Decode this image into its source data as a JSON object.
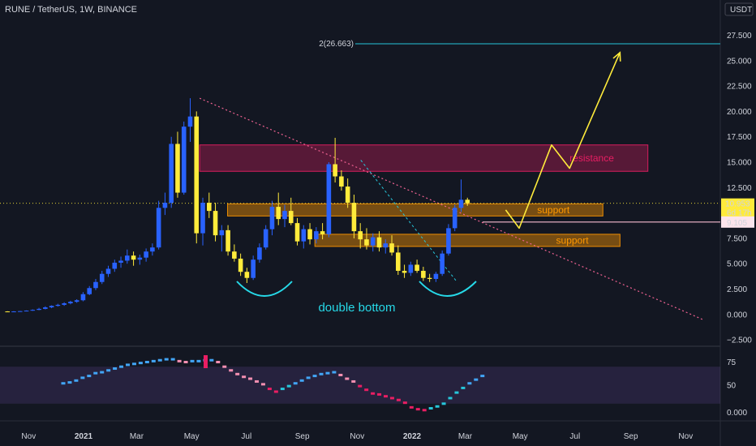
{
  "header": {
    "symbol_line": "RUNE / TetherUS, 1W, BINANCE",
    "currency": "USDT"
  },
  "colors": {
    "background": "#131722",
    "up": "#2962ff",
    "down": "#ffeb3b",
    "fib_line": "#26c6da",
    "resistance_zone": "#e91e63",
    "support_zone": "#ff9800",
    "arrow": "#ffeb3b",
    "double_bottom": "#26d9e8"
  },
  "chart_data": [
    {
      "type": "candlestick",
      "title": "RUNE / TetherUS, 1W, BINANCE",
      "ylim": [
        -3.5,
        30
      ],
      "y_ticks": [
        -2.5,
        0.0,
        2.5,
        5.0,
        7.5,
        10.0,
        12.5,
        15.0,
        17.5,
        20.0,
        22.5,
        25.0,
        27.5
      ],
      "y_tick_labels": [
        "−2.500",
        "0.000",
        "2.500",
        "5.000",
        "7.500",
        "10.000",
        "12.500",
        "15.000",
        "17.500",
        "20.000",
        "22.500",
        "25.000",
        "27.500"
      ],
      "x_tick_labels": [
        "Nov",
        "2021",
        "Mar",
        "May",
        "Jul",
        "Sep",
        "Nov",
        "2022",
        "Mar",
        "May",
        "Jul",
        "Sep",
        "Nov"
      ],
      "x_tick_dates": [
        "2020-11-01",
        "2021-01-01",
        "2021-03-01",
        "2021-05-01",
        "2021-07-01",
        "2021-09-01",
        "2021-11-01",
        "2022-01-01",
        "2022-03-01",
        "2022-05-01",
        "2022-07-01",
        "2022-09-01",
        "2022-11-01"
      ],
      "first_candle_date": "2020-10-05",
      "candles": [
        [
          0.3,
          0.32,
          0.25,
          0.28
        ],
        [
          0.28,
          0.33,
          0.26,
          0.3
        ],
        [
          0.3,
          0.35,
          0.28,
          0.33
        ],
        [
          0.33,
          0.4,
          0.3,
          0.38
        ],
        [
          0.38,
          0.5,
          0.36,
          0.45
        ],
        [
          0.45,
          0.65,
          0.42,
          0.55
        ],
        [
          0.55,
          0.8,
          0.5,
          0.7
        ],
        [
          0.7,
          0.9,
          0.62,
          0.85
        ],
        [
          0.85,
          1.05,
          0.78,
          0.95
        ],
        [
          0.95,
          1.2,
          0.85,
          1.1
        ],
        [
          1.1,
          1.35,
          1.0,
          1.25
        ],
        [
          1.25,
          1.5,
          1.15,
          1.4
        ],
        [
          1.4,
          2.2,
          1.3,
          2.0
        ],
        [
          2.0,
          2.8,
          1.9,
          2.6
        ],
        [
          2.6,
          3.5,
          2.4,
          3.2
        ],
        [
          3.2,
          4.3,
          3.0,
          4.0
        ],
        [
          4.0,
          4.8,
          3.7,
          4.5
        ],
        [
          4.5,
          5.4,
          4.2,
          5.1
        ],
        [
          5.1,
          5.7,
          4.6,
          5.3
        ],
        [
          5.3,
          6.4,
          5.0,
          5.8
        ],
        [
          5.8,
          6.2,
          4.8,
          5.4
        ],
        [
          5.4,
          5.9,
          4.9,
          5.6
        ],
        [
          5.6,
          6.5,
          5.2,
          6.2
        ],
        [
          6.2,
          7.0,
          5.8,
          6.6
        ],
        [
          6.6,
          11.2,
          6.4,
          10.5
        ],
        [
          10.5,
          12.0,
          9.8,
          11.0
        ],
        [
          11.0,
          17.5,
          10.5,
          16.8
        ],
        [
          16.8,
          18.0,
          11.5,
          12.0
        ],
        [
          12.0,
          19.0,
          11.8,
          18.5
        ],
        [
          18.5,
          21.3,
          17.0,
          19.5
        ],
        [
          19.5,
          20.0,
          7.0,
          8.0
        ],
        [
          8.0,
          11.5,
          6.8,
          11.0
        ],
        [
          11.0,
          12.0,
          9.5,
          10.2
        ],
        [
          10.2,
          11.0,
          7.2,
          7.8
        ],
        [
          7.8,
          8.8,
          6.2,
          8.3
        ],
        [
          8.3,
          8.8,
          5.8,
          6.2
        ],
        [
          6.2,
          6.9,
          5.2,
          5.5
        ],
        [
          5.5,
          6.0,
          3.8,
          4.2
        ],
        [
          4.2,
          4.6,
          3.1,
          3.6
        ],
        [
          3.6,
          5.8,
          3.4,
          5.4
        ],
        [
          5.4,
          7.0,
          5.1,
          6.6
        ],
        [
          6.6,
          8.8,
          6.4,
          8.4
        ],
        [
          8.4,
          11.2,
          7.8,
          10.6
        ],
        [
          10.6,
          12.0,
          8.8,
          9.4
        ],
        [
          9.4,
          10.8,
          8.6,
          10.2
        ],
        [
          10.2,
          11.5,
          8.8,
          9.0
        ],
        [
          9.0,
          9.5,
          6.8,
          7.2
        ],
        [
          7.2,
          8.8,
          6.5,
          8.4
        ],
        [
          8.4,
          9.0,
          6.9,
          7.4
        ],
        [
          7.4,
          8.6,
          7.0,
          8.2
        ],
        [
          8.2,
          9.0,
          7.4,
          7.9
        ],
        [
          7.9,
          15.0,
          7.6,
          14.8
        ],
        [
          14.8,
          17.4,
          13.0,
          13.6
        ],
        [
          13.6,
          14.2,
          12.2,
          12.6
        ],
        [
          12.6,
          13.4,
          10.5,
          11.0
        ],
        [
          11.0,
          11.8,
          7.5,
          8.2
        ],
        [
          8.2,
          9.0,
          6.5,
          7.4
        ],
        [
          7.4,
          8.5,
          6.4,
          6.8
        ],
        [
          6.8,
          8.0,
          6.2,
          7.6
        ],
        [
          7.6,
          8.2,
          6.2,
          6.6
        ],
        [
          6.6,
          7.4,
          6.0,
          7.0
        ],
        [
          7.0,
          7.8,
          5.8,
          6.1
        ],
        [
          6.1,
          6.8,
          3.9,
          4.3
        ],
        [
          4.3,
          4.9,
          3.6,
          4.1
        ],
        [
          4.1,
          5.2,
          3.8,
          4.9
        ],
        [
          4.9,
          5.4,
          4.1,
          4.3
        ],
        [
          4.3,
          4.7,
          3.3,
          3.6
        ],
        [
          3.6,
          4.0,
          3.2,
          3.5
        ],
        [
          3.5,
          4.2,
          3.2,
          4.0
        ],
        [
          4.0,
          6.3,
          3.8,
          6.0
        ],
        [
          6.0,
          8.9,
          5.8,
          8.5
        ],
        [
          8.5,
          10.8,
          8.2,
          10.5
        ],
        [
          10.5,
          13.3,
          10.1,
          11.3
        ],
        [
          11.3,
          11.5,
          10.7,
          10.95
        ]
      ],
      "current_price": "10.953",
      "countdown": "6d 17h",
      "support_line_price": "9.105",
      "fib_label": "2(26.663)",
      "fib_value": 26.663,
      "zones": [
        {
          "name": "resistance",
          "label": "resistance",
          "start": "2021-05-10",
          "end": "2022-09-20",
          "low": 14.1,
          "high": 16.7
        },
        {
          "name": "support-upper",
          "label": "support",
          "start": "2021-06-10",
          "end": "2022-08-01",
          "low": 9.7,
          "high": 10.9
        },
        {
          "name": "support-lower",
          "label": "support",
          "start": "2021-09-15",
          "end": "2022-08-20",
          "low": 6.7,
          "high": 7.9
        }
      ],
      "trendline": {
        "start_date": "2021-05-10",
        "start_price": 21.3,
        "end_date": "2022-11-20",
        "end_price": -0.5
      },
      "projection_path": [
        {
          "date": "2022-04-15",
          "price": 10.3
        },
        {
          "date": "2022-04-30",
          "price": 8.5
        },
        {
          "date": "2022-06-05",
          "price": 16.7
        },
        {
          "date": "2022-06-25",
          "price": 14.4
        },
        {
          "date": "2022-08-20",
          "price": 25.8
        }
      ],
      "double_bottom_label": "double bottom"
    },
    {
      "type": "line",
      "indicator": "RSI-style oscillator",
      "y_ticks": [
        50,
        75
      ],
      "band": [
        30,
        70
      ],
      "ylim": [
        0,
        100
      ],
      "values": [
        52,
        53,
        55,
        58,
        60,
        63,
        64,
        66,
        68,
        70,
        72,
        73,
        74,
        75,
        76,
        77,
        78,
        78,
        76,
        75,
        76,
        76,
        77,
        77,
        75,
        70,
        66,
        62,
        59,
        57,
        54,
        51,
        46,
        43,
        46,
        49,
        52,
        55,
        58,
        60,
        62,
        63,
        64,
        61,
        57,
        54,
        49,
        45,
        41,
        40,
        38,
        36,
        34,
        31,
        26,
        24,
        23,
        25,
        27,
        30,
        36,
        42,
        47,
        52,
        56,
        60
      ]
    }
  ]
}
